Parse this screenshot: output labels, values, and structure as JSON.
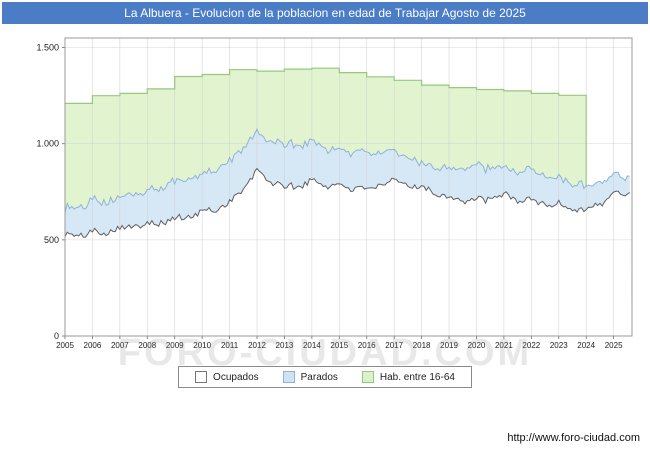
{
  "window": {
    "title": "La Albuera - Evolucion de la poblacion en edad de Trabajar Agosto de 2025"
  },
  "watermark": "FORO-CIUDAD.COM",
  "footer": {
    "url": "http://www.foro-ciudad.com"
  },
  "colors": {
    "titlebar": "#4a7dc6",
    "hab_fill": "#e1f3cf",
    "hab_stroke": "#96c97e",
    "parados_fill": "#d6e7f6",
    "parados_stroke": "#8fb3d6",
    "ocupados_fill": "#ffffff",
    "ocupados_stroke": "#5f5f5f",
    "grid": "#cfcfcf"
  },
  "legend": [
    {
      "label": "Ocupados",
      "fill": "#ffffff",
      "stroke": "#777777"
    },
    {
      "label": "Parados",
      "fill": "#cfe3f4",
      "stroke": "#8fb3d6"
    },
    {
      "label": "Hab. entre 16-64",
      "fill": "#ddf1c9",
      "stroke": "#96c97e"
    }
  ],
  "chart_data": {
    "type": "area",
    "title": "La Albuera - Evolucion de la poblacion en edad de Trabajar Agosto de 2025",
    "xlabel": "",
    "ylabel": "",
    "x_start": 2005,
    "x_end": 2025.67,
    "ylim": [
      0,
      1550
    ],
    "grid": true,
    "legend_position": "bottom",
    "yticks": [
      {
        "v": 0,
        "label": "0"
      },
      {
        "v": 500,
        "label": "500"
      },
      {
        "v": 1000,
        "label": "1.000"
      },
      {
        "v": 1500,
        "label": "1.500"
      }
    ],
    "x_tick_years": [
      2005,
      2006,
      2007,
      2008,
      2009,
      2010,
      2011,
      2012,
      2013,
      2014,
      2015,
      2016,
      2017,
      2018,
      2019,
      2020,
      2021,
      2022,
      2023,
      2024,
      2025
    ],
    "series": [
      {
        "name": "Ocupados",
        "kind": "monthly-line",
        "anchors_years_start": 2005,
        "anchors": [
          520,
          535,
          560,
          585,
          605,
          640,
          690,
          850,
          770,
          800,
          780,
          765,
          800,
          775,
          720,
          700,
          730,
          700,
          680,
          655,
          730
        ],
        "end_value": 755,
        "fill": "#ffffff",
        "stroke": "#5f5f5f"
      },
      {
        "name": "Parados",
        "kind": "monthly-stacked-on-ocupados",
        "anchors_years_start": 2005,
        "anchors": [
          135,
          165,
          160,
          170,
          195,
          190,
          215,
          200,
          225,
          205,
          190,
          185,
          150,
          125,
          150,
          180,
          140,
          150,
          140,
          125,
          95
        ],
        "end_value": 85,
        "fill": "#d6e7f6",
        "stroke": "#8fb3d6"
      },
      {
        "name": "Hab. entre 16-64",
        "kind": "annual-step",
        "years_start": 2005,
        "values": [
          1210,
          1250,
          1262,
          1285,
          1350,
          1360,
          1385,
          1378,
          1388,
          1393,
          1370,
          1348,
          1330,
          1305,
          1292,
          1282,
          1275,
          1262,
          1252
        ],
        "step_end_year": 2024,
        "fill": "#e1f3cf",
        "stroke": "#96c97e"
      }
    ]
  }
}
